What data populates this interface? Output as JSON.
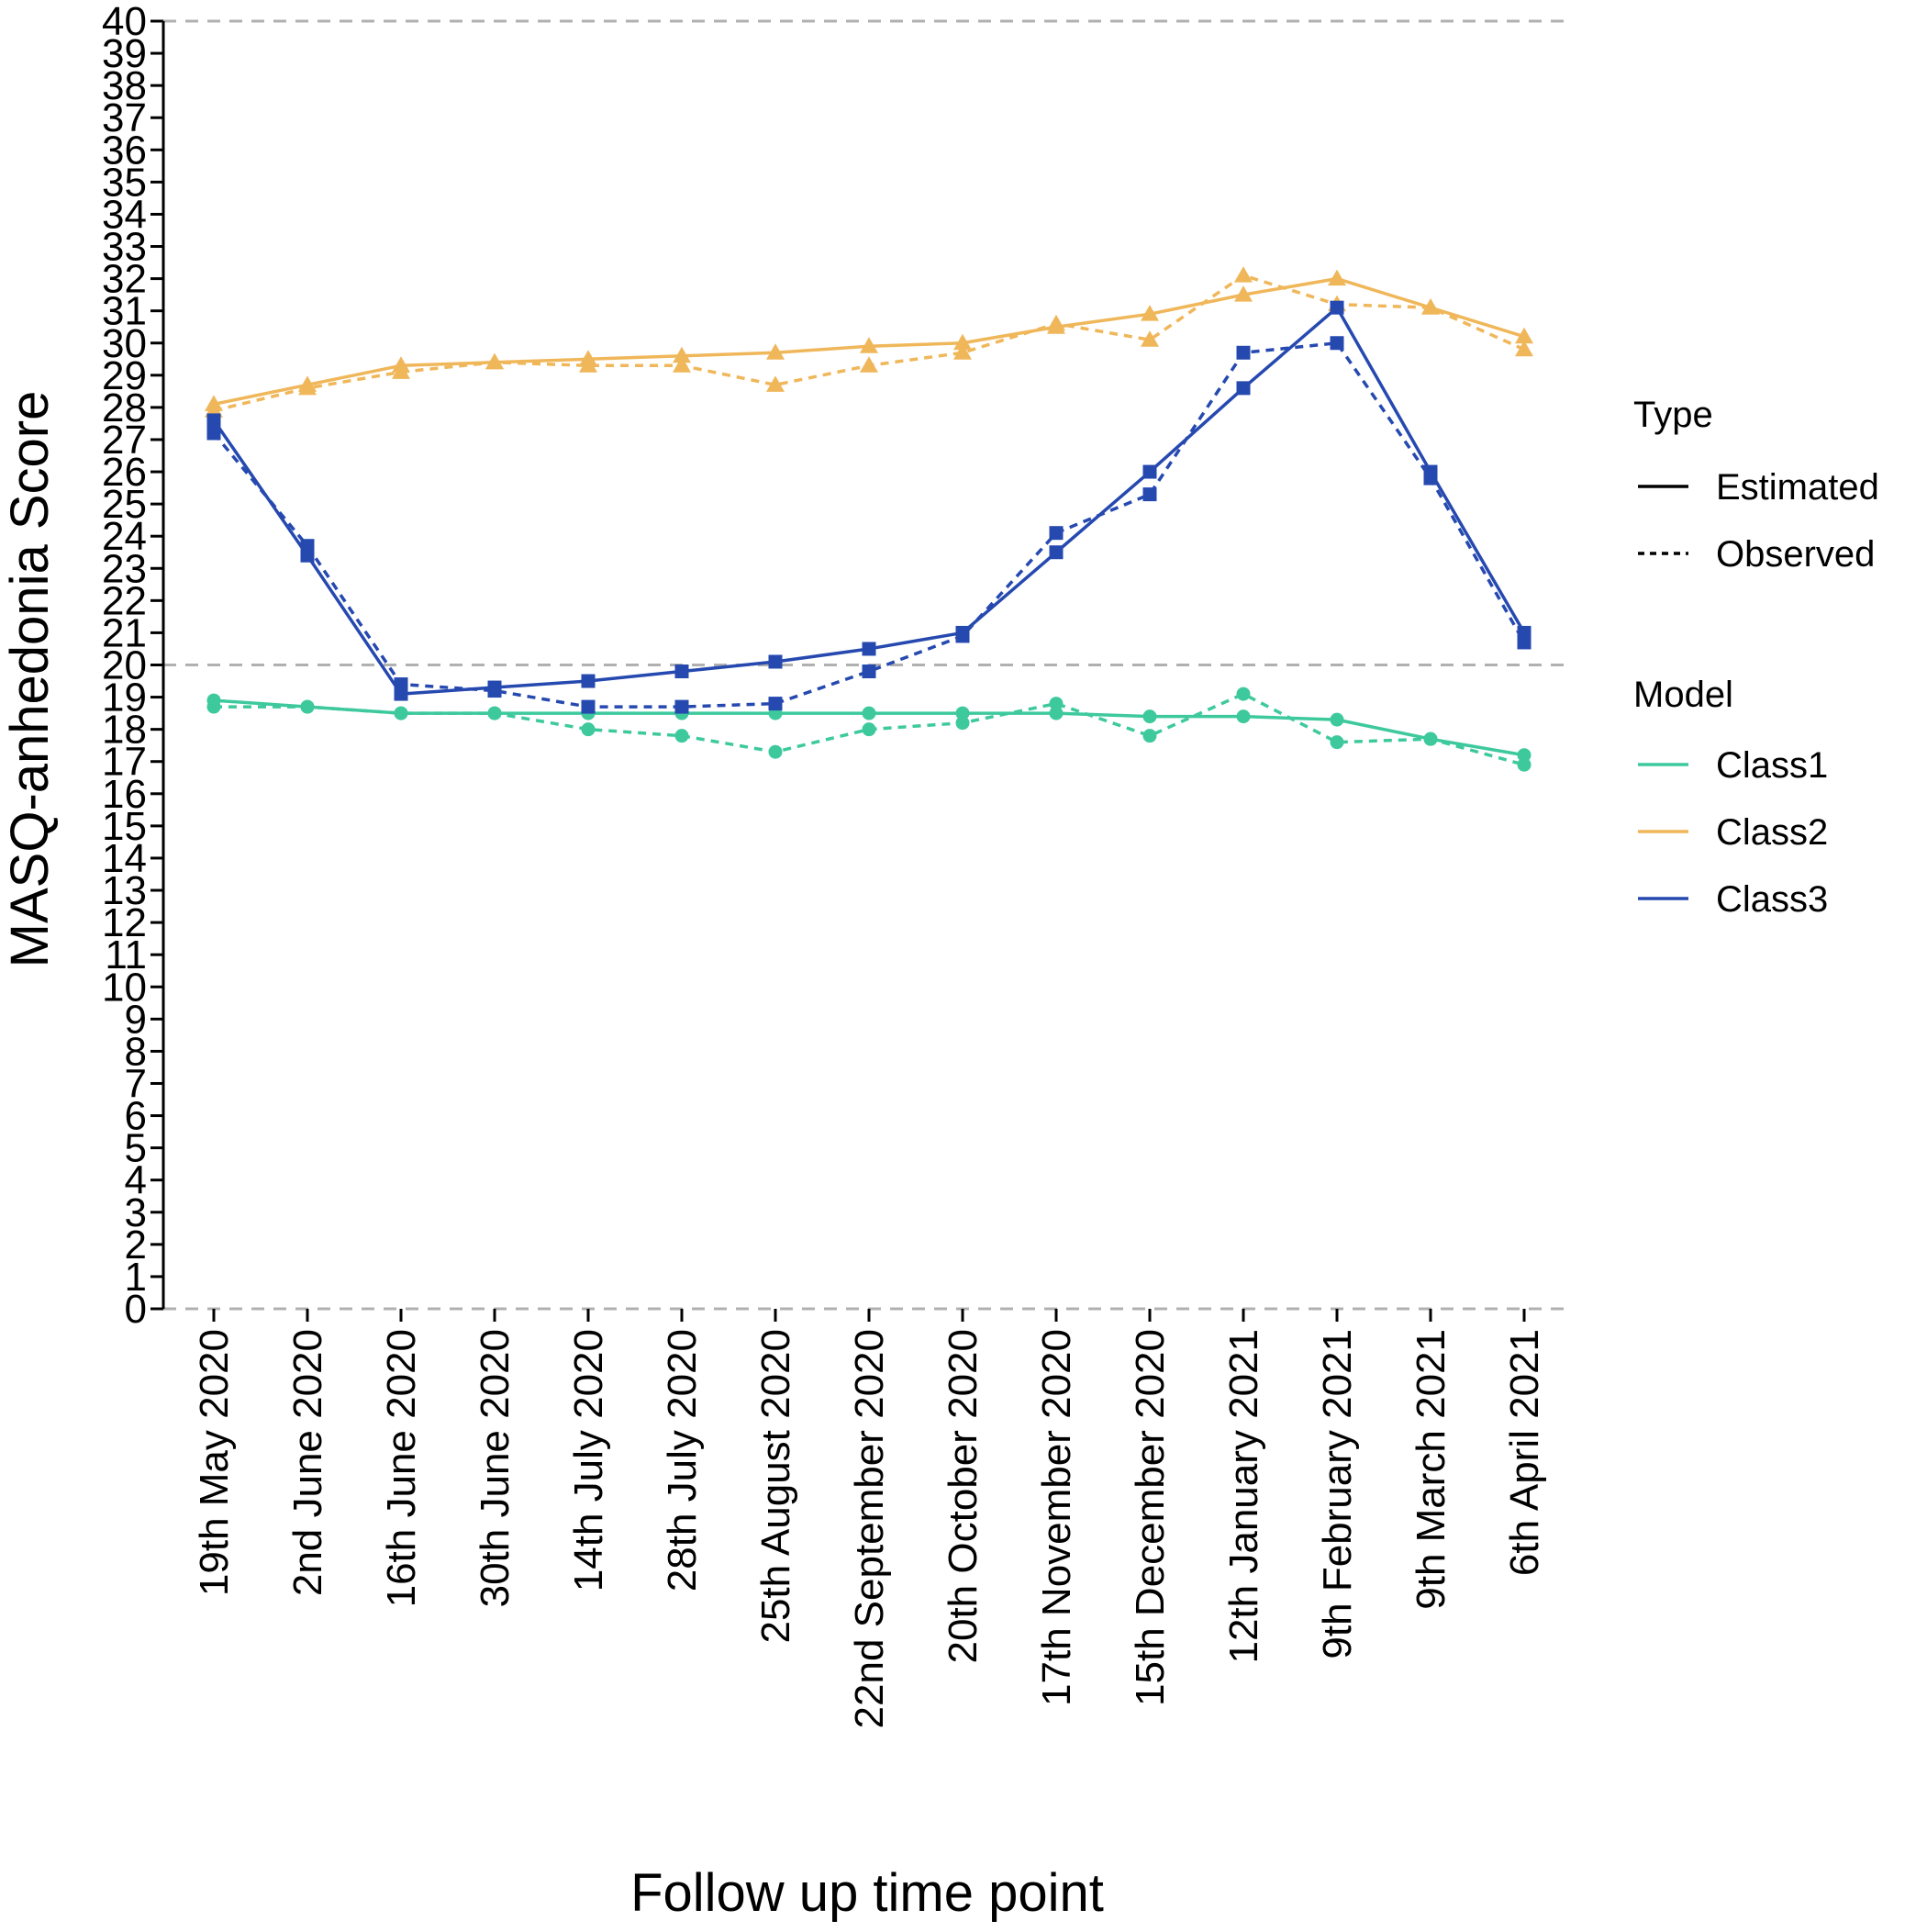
{
  "chart_data": {
    "type": "line",
    "xlabel": "Follow up time point",
    "ylabel": "MASQ-anhedonia Score",
    "ylim": [
      0,
      40
    ],
    "y_ticks": [
      0,
      1,
      2,
      3,
      4,
      5,
      6,
      7,
      8,
      9,
      10,
      11,
      12,
      13,
      14,
      15,
      16,
      17,
      18,
      19,
      20,
      21,
      22,
      23,
      24,
      25,
      26,
      27,
      28,
      29,
      30,
      31,
      32,
      33,
      34,
      35,
      36,
      37,
      38,
      39,
      40
    ],
    "reference_lines": [
      0,
      20,
      40
    ],
    "categories": [
      "19th May 2020",
      "2nd June 2020",
      "16th June 2020",
      "30th June 2020",
      "14th July 2020",
      "28th July 2020",
      "25th August 2020",
      "22nd September 2020",
      "20th October 2020",
      "17th November 2020",
      "15th December 2020",
      "12th January 2021",
      "9th February 2021",
      "9th March 2021",
      "6th April 2021"
    ],
    "grid": false,
    "legend_placement": "right",
    "legend": {
      "type_title": "Type",
      "type_entries": [
        {
          "label": "Estimated",
          "dash": "solid"
        },
        {
          "label": "Observed",
          "dash": "dotted"
        }
      ],
      "model_title": "Model",
      "model_entries": [
        {
          "label": "Class1",
          "color": "#3ec99d"
        },
        {
          "label": "Class2",
          "color": "#f0b75a"
        },
        {
          "label": "Class3",
          "color": "#2649b0"
        }
      ]
    },
    "series": [
      {
        "name": "Class1",
        "type": "Estimated",
        "color": "#3ec99d",
        "marker": "circle",
        "values": [
          18.9,
          18.7,
          18.5,
          18.5,
          18.5,
          18.5,
          18.5,
          18.5,
          18.5,
          18.5,
          18.4,
          18.4,
          18.3,
          17.7,
          17.2
        ]
      },
      {
        "name": "Class1",
        "type": "Observed",
        "color": "#3ec99d",
        "marker": "circle",
        "values": [
          18.7,
          18.7,
          18.5,
          18.5,
          18.0,
          17.8,
          17.3,
          18.0,
          18.2,
          18.8,
          17.8,
          19.1,
          17.6,
          17.7,
          16.9
        ]
      },
      {
        "name": "Class2",
        "type": "Estimated",
        "color": "#f0b75a",
        "marker": "triangle",
        "values": [
          28.1,
          28.7,
          29.3,
          29.4,
          29.5,
          29.6,
          29.7,
          29.9,
          30.0,
          30.5,
          30.9,
          31.5,
          32.0,
          31.1,
          30.2
        ]
      },
      {
        "name": "Class2",
        "type": "Observed",
        "color": "#f0b75a",
        "marker": "triangle",
        "values": [
          27.9,
          28.6,
          29.1,
          29.4,
          29.3,
          29.3,
          28.7,
          29.3,
          29.7,
          30.6,
          30.1,
          32.1,
          31.2,
          31.1,
          29.8
        ]
      },
      {
        "name": "Class3",
        "type": "Estimated",
        "color": "#2649b0",
        "marker": "square",
        "values": [
          27.6,
          23.4,
          19.1,
          19.3,
          19.5,
          19.8,
          20.1,
          20.5,
          21.0,
          23.5,
          26.0,
          28.6,
          31.1,
          26.0,
          21.0
        ]
      },
      {
        "name": "Class3",
        "type": "Observed",
        "color": "#2649b0",
        "marker": "square",
        "values": [
          27.2,
          23.7,
          19.4,
          19.2,
          18.7,
          18.7,
          18.8,
          19.8,
          20.9,
          24.1,
          25.3,
          29.7,
          30.0,
          25.8,
          20.7
        ]
      }
    ]
  }
}
